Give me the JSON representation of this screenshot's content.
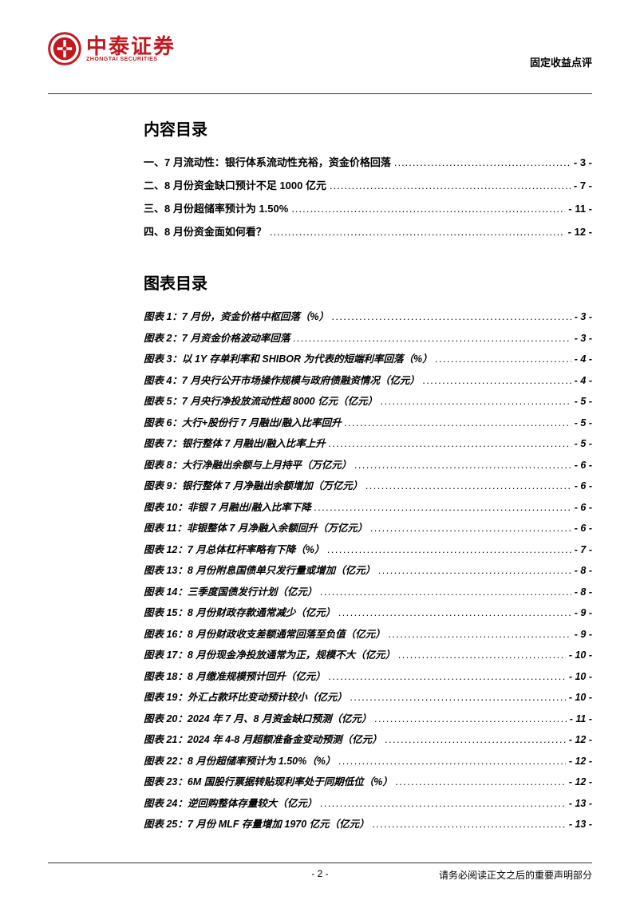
{
  "header": {
    "logo_cn": "中泰证券",
    "logo_en": "ZHONGTAI SECURITIES",
    "doc_type": "固定收益点评",
    "logo_color": "#c01920"
  },
  "toc": {
    "title": "内容目录",
    "items": [
      {
        "label": "一、7 月流动性：银行体系流动性充裕，资金价格回落",
        "page": "- 3 -"
      },
      {
        "label": "二、8 月份资金缺口预计不足 1000 亿元",
        "page": "- 7 -"
      },
      {
        "label": "三、8 月份超储率预计为 1.50%",
        "page": "- 11 -"
      },
      {
        "label": "四、8 月份资金面如何看？",
        "page": "- 12 -"
      }
    ]
  },
  "figures": {
    "title": "图表目录",
    "items": [
      {
        "label": "图表 1：7 月份，资金价格中枢回落（%）",
        "page": "- 3 -"
      },
      {
        "label": "图表 2：7 月资金价格波动率回落",
        "page": "- 3 -"
      },
      {
        "label": "图表 3：以 1Y 存单利率和 SHIBOR 为代表的短端利率回落（%）",
        "page": "- 4 -"
      },
      {
        "label": "图表 4：7 月央行公开市场操作规模与政府债融资情况（亿元）",
        "page": "- 4 -"
      },
      {
        "label": "图表 5：7 月央行净投放流动性超 8000 亿元（亿元）",
        "page": "- 5 -"
      },
      {
        "label": "图表 6：大行+股份行 7 月融出/融入比率回升",
        "page": "- 5 -"
      },
      {
        "label": "图表 7：银行整体 7 月融出/融入比率上升",
        "page": "- 5 -"
      },
      {
        "label": "图表 8：大行净融出余额与上月持平（万亿元）",
        "page": "- 6 -"
      },
      {
        "label": "图表 9：银行整体 7 月净融出余额增加（万亿元）",
        "page": "- 6 -"
      },
      {
        "label": "图表 10：非银 7 月融出/融入比率下降",
        "page": "- 6 -"
      },
      {
        "label": "图表 11：非银整体 7 月净融入余额回升（万亿元）",
        "page": "- 6 -"
      },
      {
        "label": "图表 12：7 月总体杠杆率略有下降（%）",
        "page": "- 7 -"
      },
      {
        "label": "图表 13：8 月份附息国债单只发行量或增加（亿元）",
        "page": "- 8 -"
      },
      {
        "label": "图表 14：三季度国债发行计划（亿元）",
        "page": "- 8 -"
      },
      {
        "label": "图表 15：8 月份财政存款通常减少（亿元）",
        "page": "- 9 -"
      },
      {
        "label": "图表 16：8 月份财政收支差额通常回落至负值（亿元）",
        "page": "- 9 -"
      },
      {
        "label": "图表 17：8 月份现金净投放通常为正，规模不大（亿元）",
        "page": "- 10 -"
      },
      {
        "label": "图表 18：8 月缴准规模预计回升（亿元）",
        "page": "- 10 -"
      },
      {
        "label": "图表 19：外汇占款环比变动预计较小（亿元）",
        "page": "- 10 -"
      },
      {
        "label": "图表 20：2024 年 7 月、8 月资金缺口预测（亿元）",
        "page": "- 11 -"
      },
      {
        "label": "图表 21：2024 年 4-8 月超额准备金变动预测（亿元）",
        "page": "- 12 -"
      },
      {
        "label": "图表 22：8 月份超储率预计为 1.50%（%）",
        "page": "- 12 -"
      },
      {
        "label": "图表 23：6M 国股行票据转贴现利率处于同期低位（%）",
        "page": "- 12 -"
      },
      {
        "label": "图表 24：逆回购整体存量较大（亿元）",
        "page": "- 13 -"
      },
      {
        "label": "图表 25：7 月份 MLF 存量增加 1970 亿元（亿元）",
        "page": "- 13 -"
      }
    ]
  },
  "footer": {
    "page_num": "- 2 -",
    "disclaimer": "请务必阅读正文之后的重要声明部分"
  }
}
